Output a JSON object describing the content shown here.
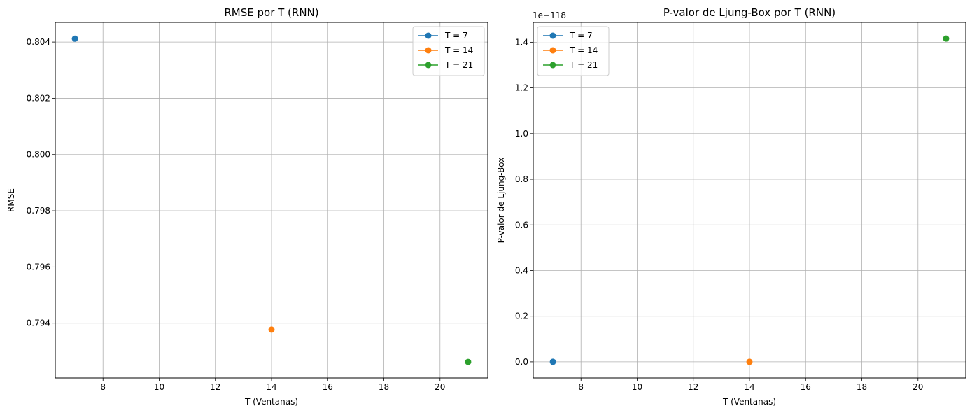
{
  "chart_data": [
    {
      "type": "scatter",
      "title": "RMSE por T (RNN)",
      "xlabel": "T (Ventanas)",
      "ylabel": "RMSE",
      "xlim": [
        6.3,
        21.7
      ],
      "ylim": [
        0.79205,
        0.8047
      ],
      "xticks": [
        8,
        10,
        12,
        14,
        16,
        18,
        20
      ],
      "xtick_labels": [
        "8",
        "10",
        "12",
        "14",
        "16",
        "18",
        "20"
      ],
      "yticks": [
        0.794,
        0.796,
        0.798,
        0.8,
        0.802,
        0.804
      ],
      "ytick_labels": [
        "0.794",
        "0.796",
        "0.798",
        "0.800",
        "0.802",
        "0.804"
      ],
      "grid": true,
      "legend_position": "top-right",
      "series": [
        {
          "name": "T = 7",
          "x": [
            7
          ],
          "y": [
            0.80412
          ],
          "color": "#1f77b4"
        },
        {
          "name": "T = 14",
          "x": [
            14
          ],
          "y": [
            0.79377
          ],
          "color": "#ff7f0e"
        },
        {
          "name": "T = 21",
          "x": [
            21
          ],
          "y": [
            0.79262
          ],
          "color": "#2ca02c"
        }
      ]
    },
    {
      "type": "scatter",
      "title": "P-valor de Ljung-Box por T (RNN)",
      "xlabel": "T (Ventanas)",
      "ylabel": "P-valor de Ljung-Box",
      "offset_label": "1e−118",
      "xlim": [
        6.3,
        21.7
      ],
      "ylim": [
        -0.0708,
        1.487
      ],
      "xticks": [
        8,
        10,
        12,
        14,
        16,
        18,
        20
      ],
      "xtick_labels": [
        "8",
        "10",
        "12",
        "14",
        "16",
        "18",
        "20"
      ],
      "yticks": [
        0.0,
        0.2,
        0.4,
        0.6,
        0.8,
        1.0,
        1.2,
        1.4
      ],
      "ytick_labels": [
        "0.0",
        "0.2",
        "0.4",
        "0.6",
        "0.8",
        "1.0",
        "1.2",
        "1.4"
      ],
      "grid": true,
      "legend_position": "top-left",
      "series": [
        {
          "name": "T = 7",
          "x": [
            7
          ],
          "y": [
            0.0
          ],
          "color": "#1f77b4"
        },
        {
          "name": "T = 14",
          "x": [
            14
          ],
          "y": [
            0.0
          ],
          "color": "#ff7f0e"
        },
        {
          "name": "T = 21",
          "x": [
            21
          ],
          "y": [
            1.416
          ],
          "color": "#2ca02c"
        }
      ]
    }
  ]
}
